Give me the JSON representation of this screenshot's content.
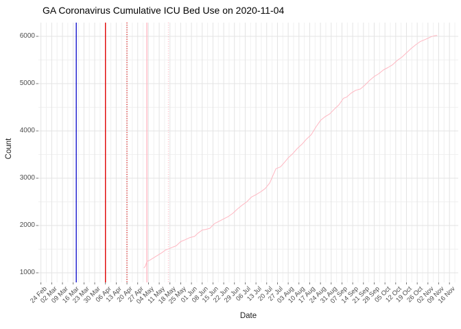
{
  "title": "GA Coronavirus Cumulative ICU Bed Use on 2020-11-04",
  "x_axis": {
    "label": "Date",
    "tick_labels": [
      "24 Feb",
      "02 Mar",
      "09 Mar",
      "16 Mar",
      "23 Mar",
      "30 Mar",
      "06 Apr",
      "13 Apr",
      "20 Apr",
      "27 Apr",
      "04 May",
      "11 May",
      "18 May",
      "25 May",
      "01 Jun",
      "08 Jun",
      "15 Jun",
      "22 Jun",
      "29 Jun",
      "06 Jul",
      "13 Jul",
      "20 Jul",
      "27 Jul",
      "03 Aug",
      "10 Aug",
      "17 Aug",
      "24 Aug",
      "31 Aug",
      "07 Sep",
      "14 Sep",
      "21 Sep",
      "28 Sep",
      "05 Oct",
      "12 Oct",
      "19 Oct",
      "26 Oct",
      "02 Nov",
      "09 Nov",
      "16 Nov"
    ]
  },
  "y_axis": {
    "label": "Count",
    "tick_labels": [
      "1000",
      "2000",
      "3000",
      "4000",
      "5000",
      "6000"
    ],
    "tick_values": [
      1000,
      2000,
      3000,
      4000,
      5000,
      6000
    ]
  },
  "colors": {
    "line_pink": "#FFB6C1",
    "vline_blue": "#1515CD",
    "vline_red": "#E00000",
    "grid_major": "#E3E3E3",
    "grid_minor": "#F0F0F0",
    "tick_mark": "#555555",
    "axis_text": "#4d4d4d"
  },
  "chart_data": {
    "type": "line",
    "title": "GA Coronavirus Cumulative ICU Bed Use on 2020-11-04",
    "xlabel": "Date",
    "ylabel": "Count",
    "x_start_date": "2020-02-24",
    "x_tick_interval_days": 7,
    "ylim": [
      800,
      6280
    ],
    "grid": true,
    "legend": "none",
    "minor_y_values": [
      1500,
      2500,
      3500,
      4500,
      5500
    ],
    "vlines": [
      {
        "date": "2020-03-18",
        "style": "solid",
        "color": "#1515CD",
        "name": "blue-event-line"
      },
      {
        "date": "2020-04-06",
        "style": "solid",
        "color": "#E00000",
        "name": "red-event-line"
      },
      {
        "date": "2020-04-20",
        "style": "dotted",
        "color": "#E00000",
        "name": "red-dotted-event-line"
      },
      {
        "date": "2020-05-03",
        "style": "solid",
        "color": "#FFB6C1",
        "name": "pink-event-line"
      },
      {
        "date": "2020-05-17",
        "style": "dotted",
        "color": "#FFB6C1",
        "name": "pink-dotted-event-line"
      }
    ],
    "series": [
      {
        "name": "cumulative_icu_beds",
        "color": "#FFB6C1",
        "points": [
          [
            "2020-05-01",
            1100
          ],
          [
            "2020-05-02",
            1140
          ],
          [
            "2020-05-03",
            1240
          ],
          [
            "2020-05-05",
            1270
          ],
          [
            "2020-05-08",
            1330
          ],
          [
            "2020-05-11",
            1390
          ],
          [
            "2020-05-13",
            1430
          ],
          [
            "2020-05-15",
            1480
          ],
          [
            "2020-05-17",
            1505
          ],
          [
            "2020-05-20",
            1545
          ],
          [
            "2020-05-22",
            1570
          ],
          [
            "2020-05-25",
            1660
          ],
          [
            "2020-05-28",
            1700
          ],
          [
            "2020-05-31",
            1745
          ],
          [
            "2020-06-03",
            1770
          ],
          [
            "2020-06-05",
            1830
          ],
          [
            "2020-06-08",
            1905
          ],
          [
            "2020-06-10",
            1915
          ],
          [
            "2020-06-13",
            1940
          ],
          [
            "2020-06-16",
            2040
          ],
          [
            "2020-06-19",
            2090
          ],
          [
            "2020-06-22",
            2140
          ],
          [
            "2020-06-25",
            2190
          ],
          [
            "2020-06-28",
            2260
          ],
          [
            "2020-07-01",
            2350
          ],
          [
            "2020-07-04",
            2430
          ],
          [
            "2020-07-07",
            2500
          ],
          [
            "2020-07-10",
            2600
          ],
          [
            "2020-07-13",
            2650
          ],
          [
            "2020-07-16",
            2710
          ],
          [
            "2020-07-19",
            2780
          ],
          [
            "2020-07-22",
            2900
          ],
          [
            "2020-07-24",
            3050
          ],
          [
            "2020-07-26",
            3200
          ],
          [
            "2020-07-29",
            3240
          ],
          [
            "2020-08-01",
            3350
          ],
          [
            "2020-08-03",
            3430
          ],
          [
            "2020-08-06",
            3520
          ],
          [
            "2020-08-09",
            3630
          ],
          [
            "2020-08-12",
            3720
          ],
          [
            "2020-08-15",
            3830
          ],
          [
            "2020-08-18",
            3920
          ],
          [
            "2020-08-21",
            4080
          ],
          [
            "2020-08-24",
            4220
          ],
          [
            "2020-08-27",
            4300
          ],
          [
            "2020-08-30",
            4360
          ],
          [
            "2020-09-02",
            4460
          ],
          [
            "2020-09-05",
            4550
          ],
          [
            "2020-09-08",
            4690
          ],
          [
            "2020-09-10",
            4715
          ],
          [
            "2020-09-13",
            4800
          ],
          [
            "2020-09-16",
            4860
          ],
          [
            "2020-09-19",
            4885
          ],
          [
            "2020-09-22",
            4970
          ],
          [
            "2020-09-25",
            5070
          ],
          [
            "2020-09-28",
            5150
          ],
          [
            "2020-10-01",
            5210
          ],
          [
            "2020-10-04",
            5290
          ],
          [
            "2020-10-07",
            5340
          ],
          [
            "2020-10-10",
            5400
          ],
          [
            "2020-10-13",
            5490
          ],
          [
            "2020-10-16",
            5560
          ],
          [
            "2020-10-19",
            5650
          ],
          [
            "2020-10-22",
            5740
          ],
          [
            "2020-10-25",
            5820
          ],
          [
            "2020-10-28",
            5890
          ],
          [
            "2020-10-31",
            5930
          ],
          [
            "2020-11-02",
            5960
          ],
          [
            "2020-11-04",
            5990
          ],
          [
            "2020-11-06",
            6010
          ],
          [
            "2020-11-08",
            6020
          ]
        ]
      }
    ]
  }
}
